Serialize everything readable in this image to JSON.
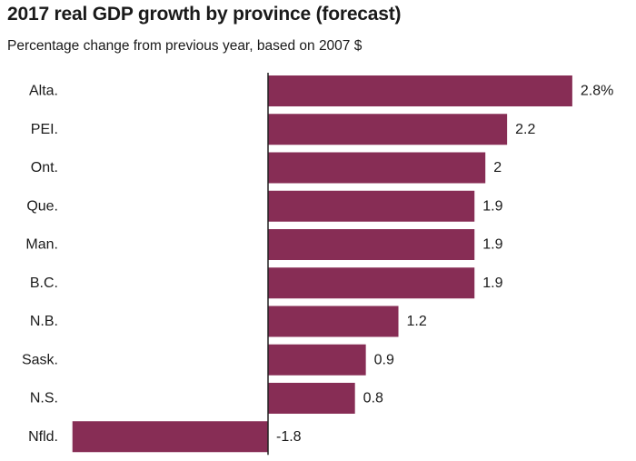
{
  "title": "2017 real GDP growth by province (forecast)",
  "subtitle": "Percentage change from previous year, based on 2007 $",
  "colors": {
    "bar": "#872d55",
    "axis": "#222222",
    "text": "#1a1a1a"
  },
  "chart_data": {
    "type": "bar",
    "orientation": "horizontal",
    "title": "2017 real GDP growth by province (forecast)",
    "subtitle": "Percentage change from previous year, based on 2007 $",
    "categories": [
      "Alta.",
      "PEI.",
      "Ont.",
      "Que.",
      "Man.",
      "B.C.",
      "N.B.",
      "Sask.",
      "N.S.",
      "Nfld."
    ],
    "values": [
      2.8,
      2.2,
      2,
      1.9,
      1.9,
      1.9,
      1.2,
      0.9,
      0.8,
      -1.8
    ],
    "value_labels": [
      "2.8%",
      "2.2",
      "2",
      "1.9",
      "1.9",
      "1.9",
      "1.2",
      "0.9",
      "0.8",
      "-1.8"
    ],
    "xlim": [
      -1.8,
      2.8
    ],
    "grid": false,
    "legend": "none"
  }
}
